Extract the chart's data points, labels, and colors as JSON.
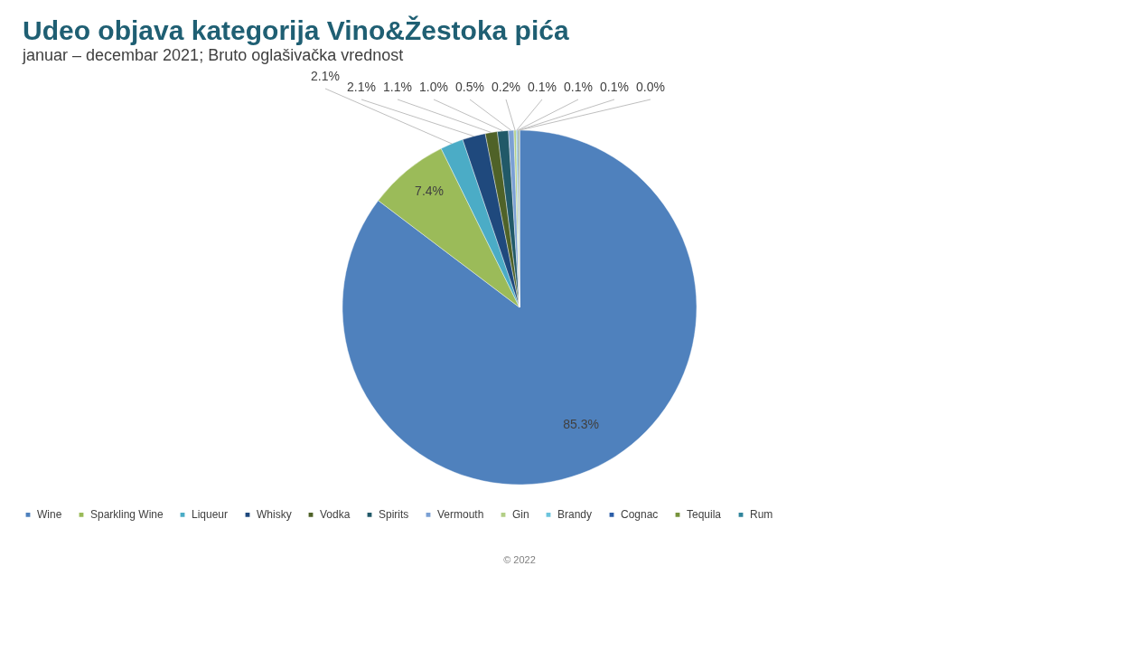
{
  "chart_data": {
    "type": "pie",
    "title": "Udeo objava kategorija Vino&Žestoka pića",
    "subtitle": "januar – decembar 2021; Bruto oglašivačka vrednost",
    "categories": [
      "Wine",
      "Sparkling Wine",
      "Liqueur",
      "Whisky",
      "Vodka",
      "Spirits",
      "Vermouth",
      "Gin",
      "Brandy",
      "Cognac",
      "Tequila",
      "Rum"
    ],
    "values": [
      85.3,
      7.4,
      2.1,
      2.1,
      1.1,
      1.0,
      0.5,
      0.2,
      0.1,
      0.1,
      0.1,
      0.0
    ],
    "colors": [
      "#4f81bd",
      "#9bbb59",
      "#4bacc6",
      "#1f497d",
      "#4f6228",
      "#215968",
      "#7ba0d4",
      "#b3cf86",
      "#6cc4dc",
      "#2c5ea8",
      "#77933c",
      "#31859c"
    ],
    "value_labels": [
      "85.3%",
      "7.4%",
      "2.1%",
      "2.1%",
      "1.1%",
      "1.0%",
      "0.5%",
      "0.2%",
      "0.1%",
      "0.1%",
      "0.1%",
      "0.0%"
    ],
    "legend": "bottom",
    "annotations": [
      "© 2022"
    ]
  }
}
